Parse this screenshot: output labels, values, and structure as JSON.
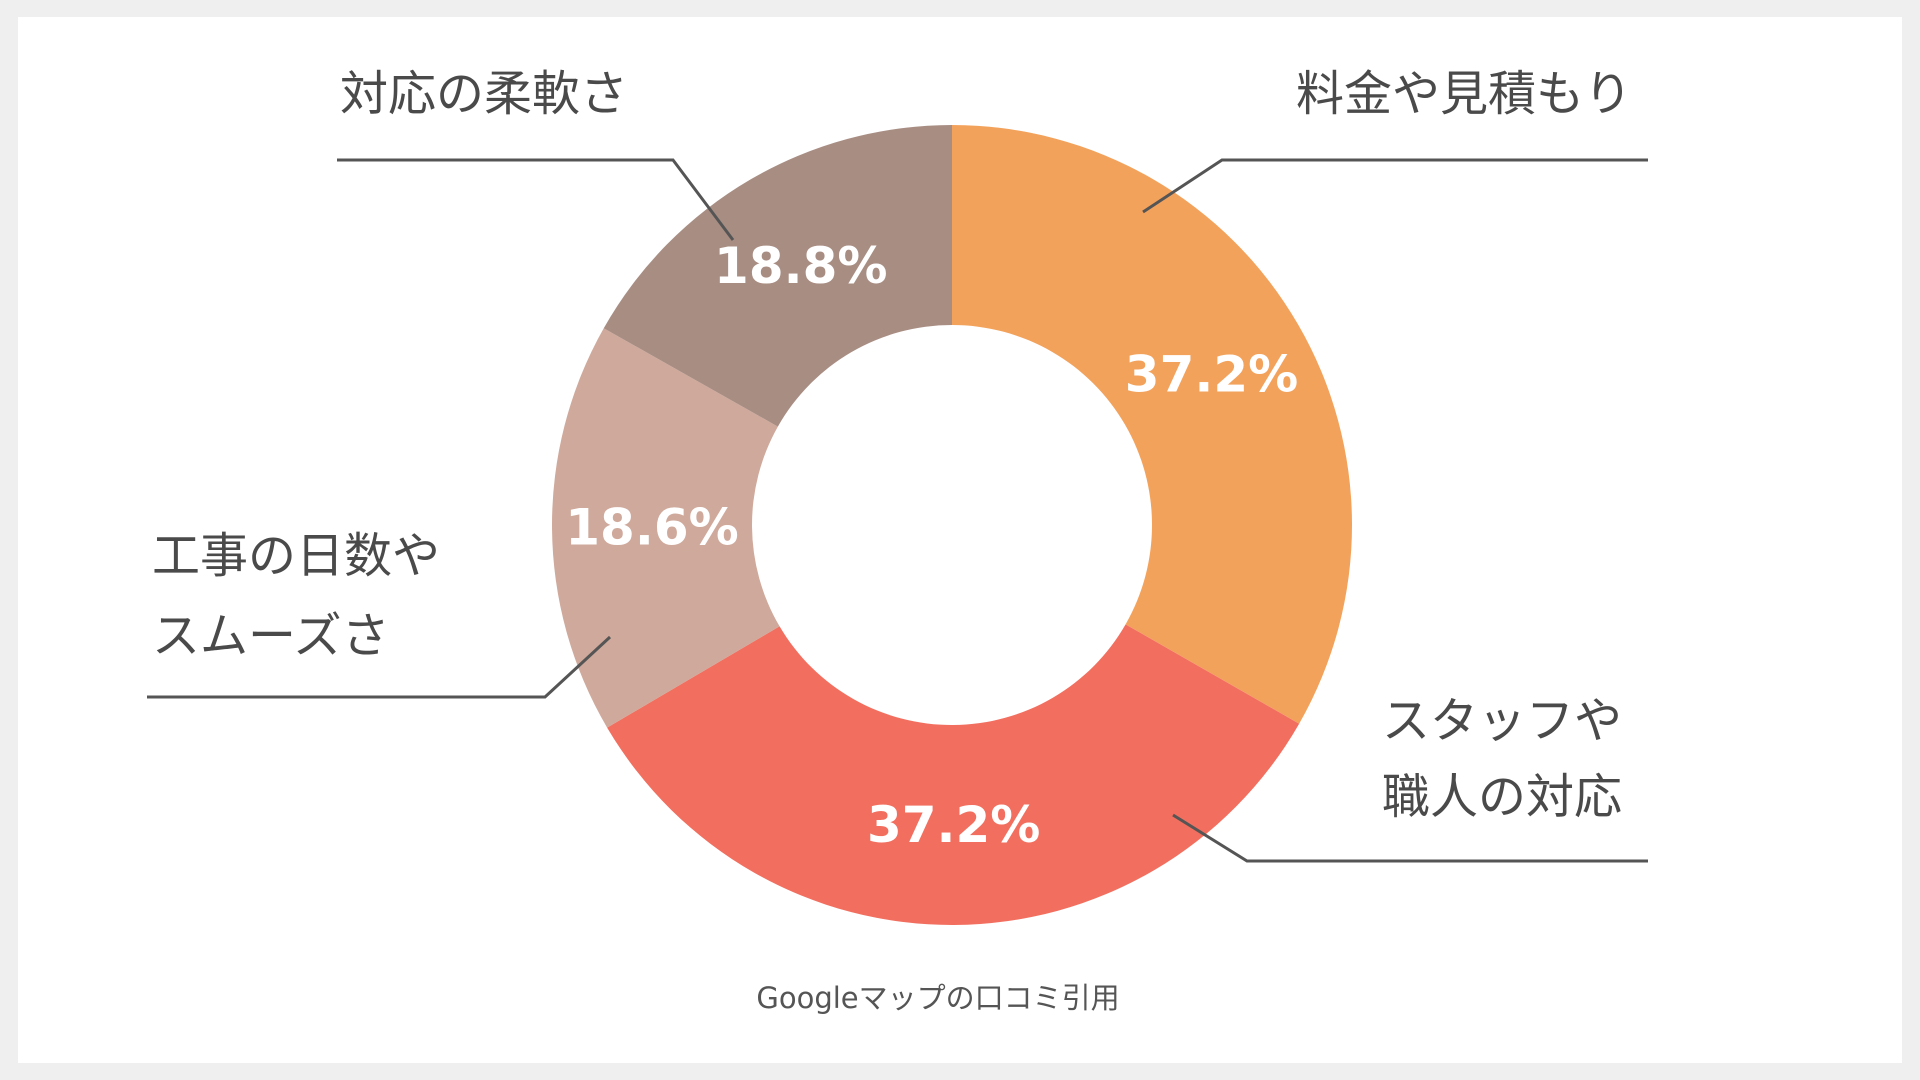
{
  "chart_data": {
    "type": "pie",
    "donut": true,
    "categories": [
      "料金や見積もり",
      "スタッフや職人の対応",
      "工事の日数やスムーズさ",
      "対応の柔軟さ"
    ],
    "label_lines": [
      [
        "料金や見積もり"
      ],
      [
        "スタッフや",
        "職人の対応"
      ],
      [
        "工事の日数や",
        "スムーズさ"
      ],
      [
        "対応の柔軟さ"
      ]
    ],
    "values": [
      37.2,
      37.2,
      18.6,
      18.8
    ],
    "value_labels": [
      "37.2%",
      "37.2%",
      "18.6%",
      "18.8%"
    ],
    "colors": [
      "#f3a25c",
      "#f26f5f",
      "#cfa99b",
      "#a88d83"
    ],
    "start": "top",
    "direction": "clockwise",
    "legend": "none",
    "source": "Googleマップの口コミ引用"
  }
}
